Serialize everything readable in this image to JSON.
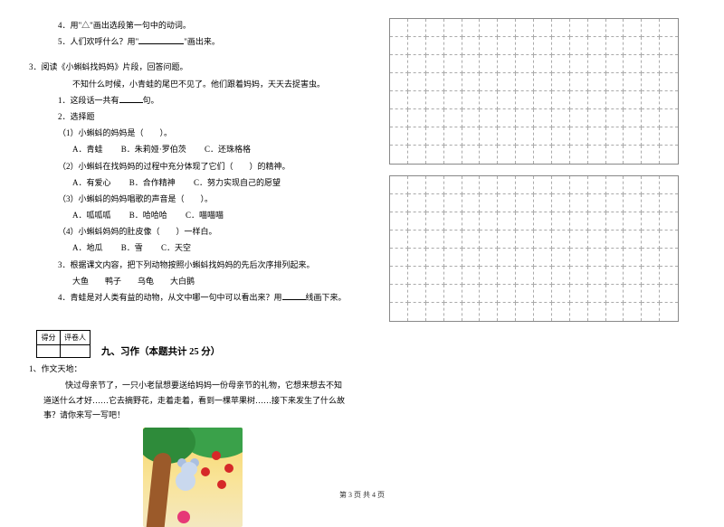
{
  "leftTop": {
    "q4": "4．用\"△\"画出选段第一句中的动词。",
    "q5a": "5．人们欢呼什么？用\"",
    "q5b": "\"画出来。"
  },
  "reading": {
    "intro": "3．阅读《小蝌蚪找妈妈》片段，回答问题。",
    "story": "不知什么时候，小青蛙的尾巴不见了。他们跟着妈妈，天天去捉害虫。",
    "q1a": "1．这段话一共有",
    "q1b": "句。",
    "q2": "2．选择题",
    "sub1": "（1）小蝌蚪的妈妈是（　　）。",
    "sub1opts": {
      "a": "A．青蛙",
      "b": "B．朱莉娅·罗伯茨",
      "c": "C．还珠格格"
    },
    "sub2": "（2）小蝌蚪在找妈妈的过程中充分体现了它们（　　）的精神。",
    "sub2opts": {
      "a": "A．有爱心",
      "b": "B．合作精神",
      "c": "C．努力实现自己的愿望"
    },
    "sub3": "（3）小蝌蚪的妈妈唱歌的声音是（　　）。",
    "sub3opts": {
      "a": "A．呱呱呱",
      "b": "B．哈哈哈",
      "c": "C．喵喵喵"
    },
    "sub4": "（4）小蝌蚪妈妈的肚皮像（　　）一样白。",
    "sub4opts": {
      "a": "A．地瓜",
      "b": "B．雪",
      "c": "C．天空"
    },
    "q3": "3．根据课文内容，把下列动物按照小蝌蚪找妈妈的先后次序排列起来。",
    "q3animals": "大鱼　　鸭子　　乌龟　　大白鹅",
    "q4a": "4．青蛙是对人类有益的动物，从文中哪一句中可以看出来？用",
    "q4b": "线画下来。"
  },
  "scoreLabels": {
    "score": "得分",
    "reviewer": "评卷人"
  },
  "section": {
    "title": "九、习作（本题共计 25 分）"
  },
  "essay": {
    "q1": "1、作文天地：",
    "p1": "快过母亲节了，一只小老鼠想要送给妈妈一份母亲节的礼物，它想来想去不知道送什么才好……它去摘野花，走着走着，看到一棵苹果树……接下来发生了什么故事？请你来写一写吧！"
  },
  "grid": {
    "cols": 16,
    "rows1": 8,
    "rows2": 8
  },
  "footer": "第 3 页 共 4 页",
  "colors": {
    "text": "#000000",
    "bg": "#ffffff",
    "gridBorder": "#888888",
    "gridDash": "#aaaaaa"
  }
}
